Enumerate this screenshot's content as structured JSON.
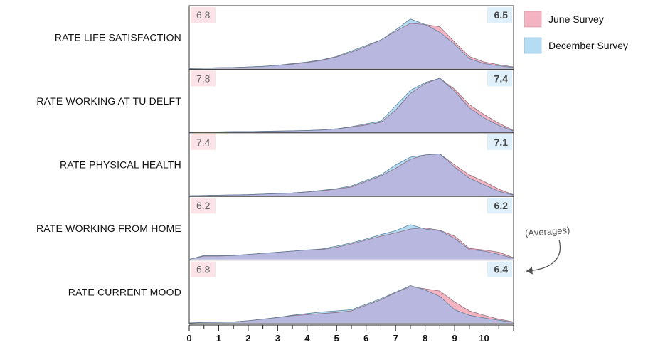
{
  "chart_data": {
    "type": "area",
    "x_ticks": [
      0,
      1,
      2,
      3,
      4,
      5,
      6,
      7,
      8,
      9,
      10
    ],
    "xlim": [
      0,
      11
    ],
    "x": [
      0,
      0.5,
      1,
      1.5,
      2,
      2.5,
      3,
      3.5,
      4,
      4.5,
      5,
      5.5,
      6,
      6.5,
      7,
      7.5,
      8,
      8.5,
      9,
      9.5,
      10,
      10.5,
      11
    ],
    "colors": {
      "june": "#f4b3c0",
      "december": "#b4dcf2",
      "overlap": "#b7b7e0"
    },
    "legend": {
      "placement": "top-right",
      "items": [
        {
          "name": "June Survey",
          "color": "#f4b3c0"
        },
        {
          "name": "December Survey",
          "color": "#b4dcf2"
        }
      ]
    },
    "annotation": "(Averages)",
    "panels": [
      {
        "label": "RATE LIFE SATISFACTION",
        "june_avg": "6.8",
        "december_avg": "6.5",
        "june": [
          0,
          1,
          1.5,
          2,
          3,
          4,
          6,
          8,
          11,
          15,
          21,
          30,
          40,
          52,
          68,
          82,
          80,
          76,
          48,
          22,
          12,
          7,
          3
        ],
        "december": [
          0,
          1,
          1.5,
          2,
          3,
          4,
          6,
          9,
          12,
          16,
          22,
          32,
          42,
          52,
          70,
          90,
          80,
          66,
          44,
          18,
          9,
          5,
          2
        ]
      },
      {
        "label": "RATE WORKING AT TU DELFT",
        "june_avg": "7.8",
        "december_avg": "7.4",
        "june": [
          0,
          0.5,
          0.5,
          1,
          1,
          1.5,
          2,
          2.5,
          3,
          4,
          6,
          9,
          13,
          18,
          40,
          70,
          88,
          98,
          78,
          50,
          32,
          16,
          3
        ],
        "december": [
          0,
          0.5,
          0.5,
          1,
          1,
          1.5,
          2,
          2.5,
          3,
          4,
          6,
          10,
          15,
          20,
          48,
          76,
          90,
          98,
          74,
          44,
          26,
          12,
          2
        ]
      },
      {
        "label": "RATE PHYSICAL HEALTH",
        "june_avg": "7.4",
        "december_avg": "7.1",
        "june": [
          0,
          0.5,
          1,
          1.5,
          2,
          3,
          4,
          5,
          7,
          9,
          12,
          16,
          26,
          36,
          50,
          66,
          74,
          76,
          56,
          38,
          26,
          12,
          2
        ],
        "december": [
          0,
          0.5,
          1,
          1.5,
          2,
          3,
          4,
          5,
          7,
          10,
          13,
          18,
          28,
          38,
          56,
          70,
          74,
          76,
          52,
          32,
          20,
          8,
          1
        ]
      },
      {
        "label": "RATE WORKING FROM HOME",
        "june_avg": "6.2",
        "december_avg": "6.2",
        "june": [
          0,
          6,
          6,
          7,
          9,
          11,
          13,
          15,
          17,
          18,
          22,
          28,
          35,
          42,
          48,
          55,
          57,
          53,
          42,
          20,
          17,
          13,
          3
        ],
        "december": [
          0,
          7,
          7,
          7,
          9,
          11,
          13,
          15,
          17,
          19,
          24,
          30,
          37,
          45,
          52,
          63,
          55,
          52,
          38,
          18,
          15,
          9,
          2
        ]
      },
      {
        "label": "RATE CURRENT MOOD",
        "june_avg": "6.8",
        "december_avg": "6.4",
        "june": [
          0,
          1,
          1.5,
          2,
          4,
          7,
          10,
          13,
          15,
          17,
          19,
          22,
          32,
          42,
          55,
          66,
          62,
          58,
          38,
          22,
          14,
          7,
          2
        ],
        "december": [
          0,
          1,
          1.5,
          2,
          4,
          7,
          10,
          14,
          17,
          20,
          22,
          24,
          34,
          44,
          56,
          68,
          60,
          48,
          24,
          14,
          9,
          5,
          1
        ]
      }
    ]
  }
}
